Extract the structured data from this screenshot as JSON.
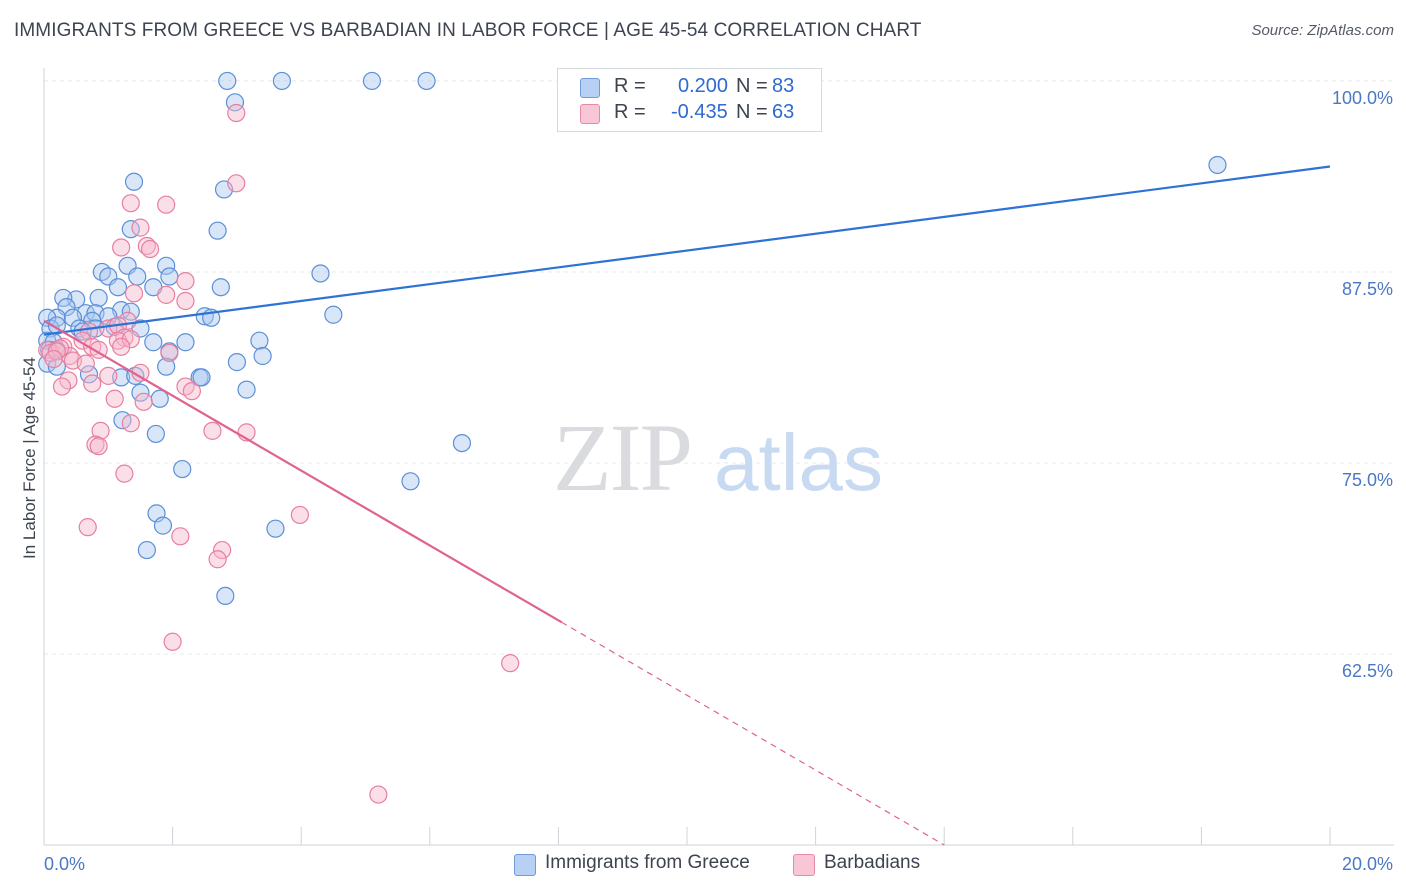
{
  "title": "IMMIGRANTS FROM GREECE VS BARBADIAN IN LABOR FORCE | AGE 45-54 CORRELATION CHART",
  "source": "Source: ZipAtlas.com",
  "watermark": {
    "zip": "ZIP",
    "atlas": "atlas"
  },
  "colors": {
    "blue_fill": "#a9c7f0",
    "blue_stroke": "#5b8fd9",
    "blue_line": "#2f72d6",
    "pink_fill": "#f6b9cc",
    "pink_stroke": "#e77fa0",
    "pink_line": "#e0628f",
    "grid": "#e6e8ec",
    "tick_label": "#4a78c2"
  },
  "legend": {
    "rows": [
      {
        "r_label": "R =",
        "r_value": "0.200",
        "n_label": "N =",
        "n_value": "83"
      },
      {
        "r_label": "R =",
        "r_value": "-0.435",
        "n_label": "N =",
        "n_value": "63"
      }
    ]
  },
  "chart_data": {
    "type": "scatter",
    "title": "IMMIGRANTS FROM GREECE VS BARBADIAN IN LABOR FORCE | AGE 45-54 CORRELATION CHART",
    "xlabel": "",
    "ylabel": "In Labor Force | Age 45-54",
    "xlim": [
      0,
      20
    ],
    "ylim": [
      50,
      101.5
    ],
    "x_tick_labels": [
      {
        "value": 0,
        "label": "0.0%"
      },
      {
        "value": 20,
        "label": "20.0%"
      }
    ],
    "y_tick_labels": [
      {
        "value": 100,
        "label": "100.0%"
      },
      {
        "value": 87.5,
        "label": "87.5%"
      },
      {
        "value": 75,
        "label": "75.0%"
      },
      {
        "value": 62.5,
        "label": "62.5%"
      }
    ],
    "grid": true,
    "legend_position": "top-center",
    "series": [
      {
        "name": "Immigrants from Greece",
        "R": 0.2,
        "N": 83,
        "trend": {
          "x1": 0,
          "y1": 83.4,
          "x2": 20,
          "y2": 94.4,
          "dashed_from": null
        },
        "points": [
          [
            2.85,
            100
          ],
          [
            3.7,
            100
          ],
          [
            5.1,
            100
          ],
          [
            5.95,
            100
          ],
          [
            2.97,
            98.6
          ],
          [
            18.25,
            94.5
          ],
          [
            1.4,
            93.4
          ],
          [
            2.8,
            92.9
          ],
          [
            1.35,
            90.3
          ],
          [
            2.7,
            90.2
          ],
          [
            1.3,
            87.9
          ],
          [
            1.9,
            87.9
          ],
          [
            0.9,
            87.5
          ],
          [
            4.3,
            87.4
          ],
          [
            1.95,
            87.2
          ],
          [
            1.45,
            87.2
          ],
          [
            1.0,
            87.2
          ],
          [
            1.7,
            86.5
          ],
          [
            1.15,
            86.5
          ],
          [
            2.75,
            86.5
          ],
          [
            0.5,
            85.7
          ],
          [
            0.85,
            85.8
          ],
          [
            0.3,
            85.8
          ],
          [
            0.35,
            85.2
          ],
          [
            1.2,
            85.0
          ],
          [
            2.5,
            84.6
          ],
          [
            0.65,
            84.8
          ],
          [
            0.8,
            84.8
          ],
          [
            1.35,
            84.9
          ],
          [
            2.6,
            84.5
          ],
          [
            4.5,
            84.7
          ],
          [
            0.2,
            84.5
          ],
          [
            0.45,
            84.5
          ],
          [
            0.75,
            84.3
          ],
          [
            1.0,
            84.6
          ],
          [
            0.05,
            84.5
          ],
          [
            0.1,
            83.8
          ],
          [
            0.2,
            84.0
          ],
          [
            0.55,
            83.8
          ],
          [
            0.8,
            83.8
          ],
          [
            1.1,
            83.9
          ],
          [
            1.5,
            83.8
          ],
          [
            0.6,
            83.6
          ],
          [
            3.35,
            83.0
          ],
          [
            0.05,
            83.0
          ],
          [
            0.15,
            82.9
          ],
          [
            1.7,
            82.9
          ],
          [
            2.2,
            82.9
          ],
          [
            0.08,
            82.4
          ],
          [
            0.2,
            82.4
          ],
          [
            1.95,
            82.3
          ],
          [
            3.4,
            82.0
          ],
          [
            0.05,
            81.5
          ],
          [
            0.2,
            81.3
          ],
          [
            3.0,
            81.6
          ],
          [
            1.9,
            81.3
          ],
          [
            0.7,
            80.8
          ],
          [
            1.2,
            80.6
          ],
          [
            1.42,
            80.7
          ],
          [
            2.42,
            80.6
          ],
          [
            2.45,
            80.6
          ],
          [
            3.15,
            79.8
          ],
          [
            1.5,
            79.6
          ],
          [
            1.8,
            79.2
          ],
          [
            1.22,
            77.8
          ],
          [
            1.74,
            76.9
          ],
          [
            6.5,
            76.3
          ],
          [
            2.15,
            74.6
          ],
          [
            5.7,
            73.8
          ],
          [
            1.75,
            71.7
          ],
          [
            1.85,
            70.9
          ],
          [
            3.6,
            70.7
          ],
          [
            1.6,
            69.3
          ],
          [
            2.82,
            66.3
          ]
        ]
      },
      {
        "name": "Barbadians",
        "R": -0.435,
        "N": 63,
        "trend": {
          "x1": 0,
          "y1": 84.3,
          "x2": 14.0,
          "y2": 50,
          "dashed_from": 8.05
        },
        "points": [
          [
            2.99,
            97.9
          ],
          [
            2.99,
            93.3
          ],
          [
            1.9,
            91.9
          ],
          [
            1.35,
            92.0
          ],
          [
            1.5,
            90.4
          ],
          [
            1.2,
            89.1
          ],
          [
            1.6,
            89.2
          ],
          [
            1.65,
            89.0
          ],
          [
            2.2,
            86.9
          ],
          [
            1.4,
            86.1
          ],
          [
            1.9,
            86.0
          ],
          [
            2.2,
            85.6
          ],
          [
            1.3,
            84.3
          ],
          [
            1.0,
            83.8
          ],
          [
            1.15,
            84.0
          ],
          [
            0.7,
            83.6
          ],
          [
            1.25,
            83.2
          ],
          [
            0.6,
            83.0
          ],
          [
            1.15,
            83.0
          ],
          [
            1.35,
            83.1
          ],
          [
            1.2,
            82.6
          ],
          [
            0.75,
            82.6
          ],
          [
            0.85,
            82.4
          ],
          [
            0.3,
            82.6
          ],
          [
            0.4,
            82.0
          ],
          [
            0.05,
            82.4
          ],
          [
            0.1,
            82.2
          ],
          [
            0.25,
            82.5
          ],
          [
            0.2,
            82.3
          ],
          [
            0.15,
            81.8
          ],
          [
            0.45,
            81.7
          ],
          [
            1.95,
            82.2
          ],
          [
            0.65,
            81.5
          ],
          [
            1.0,
            80.7
          ],
          [
            0.38,
            80.4
          ],
          [
            0.28,
            80.0
          ],
          [
            2.2,
            80.0
          ],
          [
            0.75,
            80.2
          ],
          [
            1.5,
            80.9
          ],
          [
            2.3,
            79.7
          ],
          [
            1.1,
            79.2
          ],
          [
            1.55,
            79.0
          ],
          [
            1.35,
            77.6
          ],
          [
            2.62,
            77.1
          ],
          [
            3.15,
            77.0
          ],
          [
            0.88,
            77.1
          ],
          [
            0.8,
            76.2
          ],
          [
            0.85,
            76.1
          ],
          [
            1.25,
            74.3
          ],
          [
            3.98,
            71.6
          ],
          [
            0.68,
            70.8
          ],
          [
            2.12,
            70.2
          ],
          [
            2.77,
            69.3
          ],
          [
            2.7,
            68.7
          ],
          [
            2.0,
            63.3
          ],
          [
            7.25,
            61.9
          ],
          [
            5.2,
            53.3
          ]
        ]
      }
    ]
  },
  "bottom_legend": {
    "items": [
      {
        "label": "Immigrants from Greece"
      },
      {
        "label": "Barbadians"
      }
    ]
  }
}
